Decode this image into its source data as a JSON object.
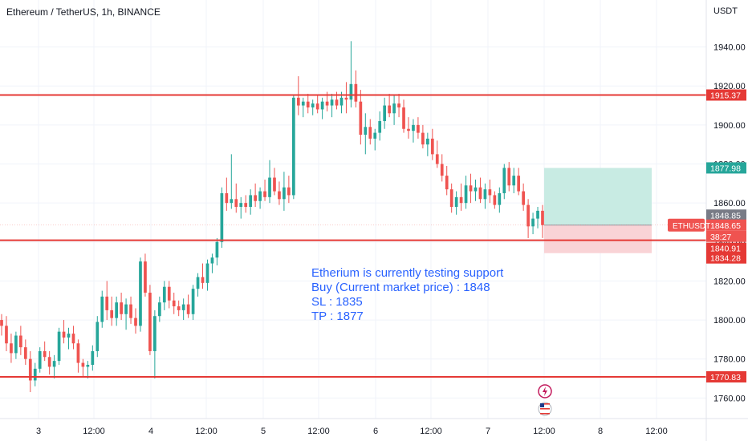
{
  "header": {
    "title": "Ethereum / TetherUS, 1h, BINANCE"
  },
  "annotation": {
    "lines": [
      "Etherium is currently testing support",
      "Buy (Current market price) : 1848",
      "SL : 1835",
      "TP : 1877"
    ]
  },
  "colors": {
    "up": "#26a69a",
    "down": "#ef5350",
    "level": "#e53935",
    "note": "#2962ff",
    "profit_zone": "#c8ebe3",
    "loss_zone": "#f9d3d6"
  },
  "icons": [
    "lightning-icon",
    "us-flag-icon"
  ],
  "chart_data": {
    "type": "candlestick",
    "symbol_label": "ETHUSDT",
    "currency_label": "USDT",
    "y_ticks": [
      1760,
      1780,
      1800,
      1820,
      1840,
      1860,
      1880,
      1900,
      1920,
      1940
    ],
    "y_tick_labels": [
      "1760.00",
      "1780.00",
      "1800.00",
      "1820.00",
      "1840.00",
      "1860.00",
      "1880.00",
      "1900.00",
      "1920.00",
      "1940.00"
    ],
    "x_ticks": [
      "3",
      "12:00",
      "4",
      "12:00",
      "5",
      "12:00",
      "6",
      "12:00",
      "7",
      "12:00",
      "8",
      "12:00"
    ],
    "horizontal_levels": [
      1915.37,
      1840.91,
      1770.83
    ],
    "price_badges": [
      {
        "text": "1915.37",
        "value": 1915.37,
        "color": "#e53935"
      },
      {
        "text": "1877.98",
        "value": 1877.98,
        "color": "#26a69a"
      },
      {
        "text": "1848.85",
        "value": 1848.85,
        "color": "#787b86"
      },
      {
        "text": "1848.65",
        "value": 1848.65,
        "color": "#ef5350"
      },
      {
        "text": "38:27",
        "value": 1848.65,
        "color": "#ef5350"
      },
      {
        "text": "1840.91",
        "value": 1840.91,
        "color": "#e53935"
      },
      {
        "text": "1834.28",
        "value": 1834.28,
        "color": "#e53935"
      },
      {
        "text": "1770.83",
        "value": 1770.83,
        "color": "#e53935"
      }
    ],
    "position": {
      "entry": 1848.65,
      "target": 1877.98,
      "stop": 1834.28
    },
    "last_price": 1848.65,
    "candles_ohlc": [
      [
        1800,
        1803,
        1792,
        1797
      ],
      [
        1797,
        1802,
        1784,
        1788
      ],
      [
        1788,
        1793,
        1778,
        1783
      ],
      [
        1783,
        1794,
        1780,
        1792
      ],
      [
        1792,
        1797,
        1782,
        1786
      ],
      [
        1786,
        1790,
        1777,
        1780
      ],
      [
        1780,
        1784,
        1763,
        1769
      ],
      [
        1769,
        1778,
        1766,
        1775
      ],
      [
        1775,
        1786,
        1773,
        1784
      ],
      [
        1784,
        1789,
        1779,
        1781
      ],
      [
        1781,
        1784,
        1772,
        1776
      ],
      [
        1776,
        1782,
        1770,
        1779
      ],
      [
        1779,
        1796,
        1777,
        1794
      ],
      [
        1794,
        1800,
        1788,
        1791
      ],
      [
        1791,
        1796,
        1785,
        1793
      ],
      [
        1793,
        1797,
        1785,
        1788
      ],
      [
        1788,
        1790,
        1773,
        1778
      ],
      [
        1778,
        1780,
        1771,
        1776
      ],
      [
        1776,
        1779,
        1770,
        1777
      ],
      [
        1777,
        1787,
        1774,
        1784
      ],
      [
        1784,
        1802,
        1781,
        1799
      ],
      [
        1799,
        1815,
        1796,
        1812
      ],
      [
        1812,
        1820,
        1800,
        1805
      ],
      [
        1805,
        1812,
        1797,
        1801
      ],
      [
        1801,
        1812,
        1797,
        1809
      ],
      [
        1809,
        1814,
        1800,
        1803
      ],
      [
        1803,
        1811,
        1795,
        1808
      ],
      [
        1808,
        1812,
        1798,
        1801
      ],
      [
        1801,
        1806,
        1793,
        1797
      ],
      [
        1797,
        1832,
        1794,
        1830
      ],
      [
        1830,
        1834,
        1812,
        1814
      ],
      [
        1814,
        1818,
        1782,
        1784
      ],
      [
        1784,
        1805,
        1770,
        1802
      ],
      [
        1802,
        1812,
        1799,
        1809
      ],
      [
        1809,
        1820,
        1805,
        1817
      ],
      [
        1817,
        1820,
        1806,
        1810
      ],
      [
        1810,
        1814,
        1803,
        1807
      ],
      [
        1807,
        1810,
        1802,
        1805
      ],
      [
        1805,
        1811,
        1800,
        1808
      ],
      [
        1808,
        1813,
        1801,
        1803
      ],
      [
        1803,
        1818,
        1800,
        1816
      ],
      [
        1816,
        1824,
        1812,
        1822
      ],
      [
        1822,
        1829,
        1816,
        1819
      ],
      [
        1819,
        1831,
        1815,
        1829
      ],
      [
        1829,
        1834,
        1824,
        1832
      ],
      [
        1832,
        1842,
        1828,
        1840
      ],
      [
        1840,
        1868,
        1837,
        1865
      ],
      [
        1865,
        1873,
        1856,
        1860
      ],
      [
        1860,
        1885,
        1857,
        1862
      ],
      [
        1862,
        1870,
        1855,
        1858
      ],
      [
        1858,
        1863,
        1852,
        1860
      ],
      [
        1860,
        1864,
        1855,
        1858
      ],
      [
        1858,
        1867,
        1854,
        1864
      ],
      [
        1864,
        1870,
        1858,
        1861
      ],
      [
        1861,
        1868,
        1857,
        1866
      ],
      [
        1866,
        1872,
        1861,
        1863
      ],
      [
        1863,
        1882,
        1860,
        1873
      ],
      [
        1873,
        1878,
        1864,
        1866
      ],
      [
        1866,
        1871,
        1859,
        1862
      ],
      [
        1862,
        1876,
        1856,
        1868
      ],
      [
        1868,
        1874,
        1860,
        1864
      ],
      [
        1864,
        1915,
        1862,
        1914
      ],
      [
        1914,
        1925,
        1905,
        1910
      ],
      [
        1910,
        1914,
        1904,
        1912
      ],
      [
        1912,
        1916,
        1906,
        1909
      ],
      [
        1909,
        1913,
        1905,
        1911
      ],
      [
        1911,
        1915,
        1906,
        1908
      ],
      [
        1908,
        1914,
        1903,
        1912
      ],
      [
        1912,
        1917,
        1907,
        1910
      ],
      [
        1910,
        1916,
        1904,
        1913
      ],
      [
        1913,
        1917,
        1908,
        1910
      ],
      [
        1910,
        1917,
        1906,
        1914
      ],
      [
        1914,
        1922,
        1906,
        1913
      ],
      [
        1913,
        1943,
        1909,
        1921
      ],
      [
        1921,
        1928,
        1909,
        1912
      ],
      [
        1912,
        1918,
        1890,
        1895
      ],
      [
        1895,
        1906,
        1885,
        1899
      ],
      [
        1899,
        1903,
        1890,
        1893
      ],
      [
        1893,
        1898,
        1887,
        1896
      ],
      [
        1896,
        1907,
        1892,
        1902
      ],
      [
        1902,
        1914,
        1898,
        1910
      ],
      [
        1910,
        1916,
        1904,
        1906
      ],
      [
        1906,
        1915,
        1900,
        1911
      ],
      [
        1911,
        1916,
        1904,
        1909
      ],
      [
        1909,
        1913,
        1896,
        1898
      ],
      [
        1898,
        1904,
        1893,
        1897
      ],
      [
        1897,
        1903,
        1891,
        1900
      ],
      [
        1900,
        1904,
        1893,
        1896
      ],
      [
        1896,
        1900,
        1888,
        1890
      ],
      [
        1890,
        1896,
        1884,
        1893
      ],
      [
        1893,
        1898,
        1882,
        1885
      ],
      [
        1885,
        1892,
        1878,
        1880
      ],
      [
        1880,
        1885,
        1871,
        1874
      ],
      [
        1874,
        1879,
        1864,
        1867
      ],
      [
        1867,
        1870,
        1855,
        1858
      ],
      [
        1858,
        1866,
        1854,
        1863
      ],
      [
        1863,
        1870,
        1856,
        1860
      ],
      [
        1860,
        1874,
        1857,
        1869
      ],
      [
        1869,
        1875,
        1860,
        1866
      ],
      [
        1866,
        1872,
        1861,
        1868
      ],
      [
        1868,
        1873,
        1860,
        1862
      ],
      [
        1862,
        1870,
        1857,
        1867
      ],
      [
        1867,
        1872,
        1860,
        1864
      ],
      [
        1864,
        1866,
        1857,
        1859
      ],
      [
        1859,
        1868,
        1855,
        1865
      ],
      [
        1865,
        1880,
        1862,
        1878
      ],
      [
        1878,
        1881,
        1866,
        1869
      ],
      [
        1869,
        1878,
        1865,
        1874
      ],
      [
        1874,
        1878,
        1864,
        1866
      ],
      [
        1866,
        1870,
        1856,
        1859
      ],
      [
        1859,
        1862,
        1842,
        1848
      ],
      [
        1848,
        1855,
        1844,
        1852
      ],
      [
        1852,
        1858,
        1847,
        1856
      ],
      [
        1856,
        1859,
        1842,
        1848.65
      ]
    ]
  }
}
